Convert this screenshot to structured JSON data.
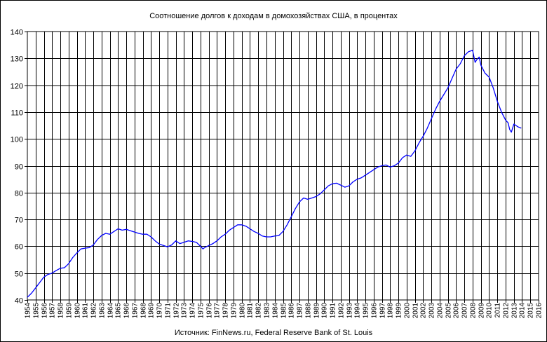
{
  "chart_data": {
    "type": "line",
    "title": "Соотношение долгов к доходам в домохозяйствах США, в процентах",
    "source": "Источник: FinNews.ru, Federal Reserve Bank of St. Louis",
    "xlabel": "",
    "ylabel": "",
    "ylim": [
      40,
      140
    ],
    "xlim": [
      1954,
      2016
    ],
    "y_ticks": [
      40,
      50,
      60,
      70,
      80,
      90,
      100,
      110,
      120,
      130,
      140
    ],
    "x_ticks": [
      1954,
      1955,
      1956,
      1957,
      1958,
      1959,
      1960,
      1961,
      1962,
      1963,
      1964,
      1965,
      1966,
      1967,
      1968,
      1969,
      1970,
      1971,
      1972,
      1973,
      1974,
      1975,
      1976,
      1977,
      1978,
      1979,
      1980,
      1981,
      1982,
      1983,
      1984,
      1985,
      1986,
      1987,
      1988,
      1989,
      1990,
      1991,
      1992,
      1993,
      1994,
      1995,
      1996,
      1997,
      1998,
      1999,
      2000,
      2001,
      2002,
      2003,
      2004,
      2005,
      2006,
      2007,
      2008,
      2009,
      2010,
      2011,
      2012,
      2013,
      2014,
      2015,
      2016
    ],
    "grid": true,
    "line_color": "#0000ff",
    "series": [
      {
        "x": [
          1954.0,
          1954.5,
          1955.0,
          1955.5,
          1956.0,
          1956.5,
          1957.0,
          1957.5,
          1958.0,
          1958.5,
          1959.0,
          1959.5,
          1960.0,
          1960.5,
          1961.0,
          1961.5,
          1962.0,
          1962.5,
          1963.0,
          1963.5,
          1964.0,
          1964.5,
          1965.0,
          1965.5,
          1966.0,
          1966.5,
          1967.0,
          1967.5,
          1968.0,
          1968.5,
          1969.0,
          1969.5,
          1970.0,
          1970.5,
          1971.0,
          1971.5,
          1972.0,
          1972.5,
          1973.0,
          1973.5,
          1974.0,
          1974.5,
          1975.0,
          1975.3,
          1975.5,
          1976.0,
          1976.5,
          1977.0,
          1977.5,
          1978.0,
          1978.5,
          1979.0,
          1979.5,
          1980.0,
          1980.5,
          1981.0,
          1981.5,
          1982.0,
          1982.5,
          1983.0,
          1983.5,
          1984.0,
          1984.5,
          1985.0,
          1985.5,
          1986.0,
          1986.5,
          1987.0,
          1987.5,
          1988.0,
          1988.5,
          1989.0,
          1989.5,
          1990.0,
          1990.5,
          1991.0,
          1991.5,
          1992.0,
          1992.5,
          1993.0,
          1993.5,
          1994.0,
          1994.5,
          1995.0,
          1995.5,
          1996.0,
          1996.5,
          1997.0,
          1997.5,
          1998.0,
          1998.5,
          1999.0,
          1999.5,
          2000.0,
          2000.5,
          2001.0,
          2001.5,
          2002.0,
          2002.5,
          2003.0,
          2003.5,
          2004.0,
          2004.5,
          2005.0,
          2005.5,
          2006.0,
          2006.5,
          2007.0,
          2007.5,
          2008.0,
          2008.3,
          2008.5,
          2008.8,
          2009.0,
          2009.5,
          2010.0,
          2010.5,
          2011.0,
          2011.5,
          2012.0,
          2012.3,
          2012.5,
          2012.7,
          2013.0,
          2013.5,
          2013.9
        ],
        "y": [
          41.0,
          42.5,
          44.5,
          46.5,
          48.5,
          49.5,
          50.0,
          51.0,
          51.8,
          52.0,
          53.5,
          55.8,
          57.5,
          59.0,
          59.3,
          59.5,
          60.5,
          62.5,
          64.0,
          64.8,
          64.5,
          65.5,
          66.5,
          66.0,
          66.3,
          65.8,
          65.3,
          64.8,
          64.5,
          64.5,
          63.5,
          62.0,
          60.8,
          60.3,
          59.8,
          60.5,
          62.0,
          61.0,
          61.5,
          62.0,
          61.8,
          61.5,
          60.0,
          59.0,
          59.5,
          60.3,
          61.0,
          62.0,
          63.5,
          64.5,
          66.0,
          67.0,
          68.0,
          68.0,
          67.5,
          66.5,
          65.5,
          64.8,
          63.8,
          63.5,
          63.5,
          63.8,
          64.0,
          65.5,
          68.0,
          71.0,
          74.0,
          76.5,
          78.0,
          77.5,
          78.0,
          78.5,
          79.5,
          81.0,
          82.5,
          83.3,
          83.5,
          82.8,
          82.0,
          82.5,
          84.0,
          85.0,
          85.5,
          86.5,
          87.5,
          88.5,
          89.5,
          90.0,
          90.3,
          89.5,
          90.0,
          91.0,
          93.0,
          94.0,
          93.5,
          95.5,
          98.5,
          101.0,
          104.0,
          107.5,
          111.0,
          114.0,
          116.5,
          119.0,
          122.5,
          126.0,
          128.0,
          131.0,
          132.5,
          133.0,
          128.5,
          129.5,
          130.5,
          127.5,
          124.5,
          123.0,
          119.0,
          114.0,
          110.0,
          107.0,
          106.0,
          103.5,
          102.5,
          105.5,
          104.5,
          104.0
        ]
      }
    ]
  }
}
